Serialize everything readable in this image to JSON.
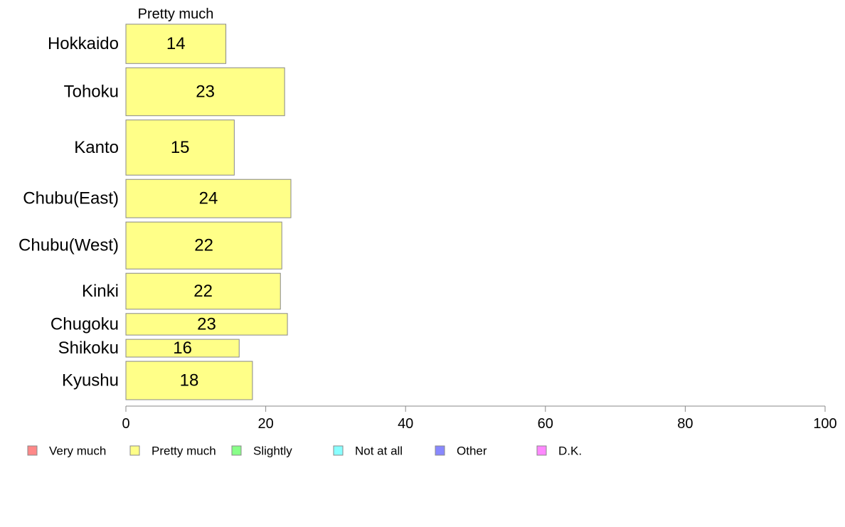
{
  "chart_data": {
    "type": "bar",
    "orientation": "horizontal",
    "stacked": true,
    "panel_label": "Pretty much",
    "categories": [
      "Hokkaido",
      "Tohoku",
      "Kanto",
      "Chubu(East)",
      "Chubu(West)",
      "Kinki",
      "Chugoku",
      "Shikoku",
      "Kyushu"
    ],
    "category_weights": [
      0.82,
      1.0,
      1.15,
      0.8,
      0.98,
      0.75,
      0.45,
      0.37,
      0.8
    ],
    "series": [
      {
        "name": "Pretty much",
        "color": "#ffff88",
        "values": [
          14.3,
          22.7,
          15.5,
          23.6,
          22.3,
          22.1,
          23.1,
          16.2,
          18.1
        ],
        "labels": [
          "14",
          "23",
          "15",
          "24",
          "22",
          "22",
          "23",
          "16",
          "18"
        ]
      }
    ],
    "xlim": [
      0,
      100
    ],
    "xticks": [
      "0",
      "20",
      "40",
      "60",
      "80",
      "100"
    ],
    "xtick_values": [
      0,
      20,
      40,
      60,
      80,
      100
    ],
    "grid": false,
    "legend_position": "bottom",
    "legend": [
      {
        "label": "Very much",
        "color": "#ff8888"
      },
      {
        "label": "Pretty much",
        "color": "#ffff88"
      },
      {
        "label": "Slightly",
        "color": "#88ff88"
      },
      {
        "label": "Not at all",
        "color": "#88ffff"
      },
      {
        "label": "Other",
        "color": "#8888ff"
      },
      {
        "label": "D.K.",
        "color": "#ff88ff"
      }
    ]
  }
}
